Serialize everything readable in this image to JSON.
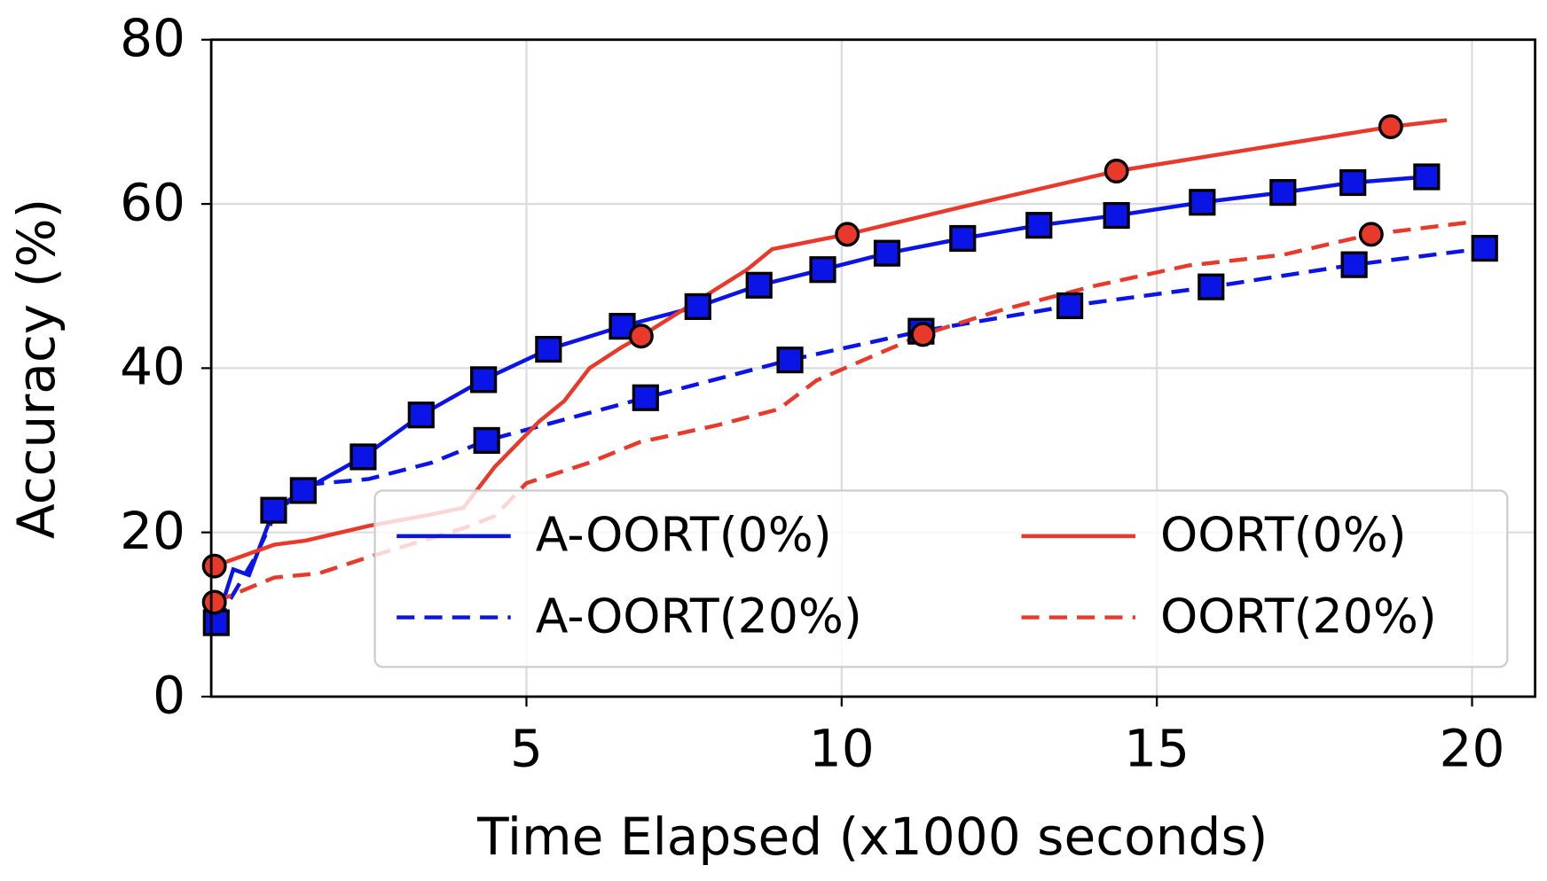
{
  "chart_data": {
    "type": "line",
    "x_label": "Time Elapsed (x1000 seconds)",
    "y_label": "Accuracy (%)",
    "xlim": [
      0,
      21
    ],
    "ylim": [
      0,
      80
    ],
    "xticks": [
      5,
      10,
      15,
      20
    ],
    "yticks": [
      0,
      20,
      40,
      60,
      80
    ],
    "grid": true,
    "legend": "lower right",
    "series": [
      {
        "name": "A-OORT(0%)",
        "color": "#0a14e6",
        "dash": "solid",
        "marker": "square",
        "x": [
          0.08,
          0.35,
          0.6,
          0.99,
          1.46,
          2.41,
          3.33,
          4.32,
          5.35,
          6.52,
          7.72,
          8.69,
          9.7,
          10.72,
          11.92,
          13.13,
          14.36,
          15.72,
          17.0,
          18.11,
          19.28
        ],
        "values": [
          9.0,
          15.5,
          14.8,
          22.7,
          25.1,
          29.2,
          34.3,
          38.6,
          42.3,
          45.1,
          47.5,
          50.1,
          52.0,
          54.0,
          55.8,
          57.4,
          58.6,
          60.2,
          61.4,
          62.6,
          63.3
        ],
        "marker_x": [
          0.08,
          0.99,
          1.46,
          2.41,
          3.33,
          4.32,
          5.35,
          6.52,
          7.72,
          8.69,
          9.7,
          10.72,
          11.92,
          13.13,
          14.36,
          15.72,
          17.0,
          18.11,
          19.28
        ],
        "marker_values": [
          9.0,
          22.7,
          25.1,
          29.2,
          34.3,
          38.6,
          42.3,
          45.1,
          47.5,
          50.1,
          52.0,
          54.0,
          55.8,
          57.4,
          58.6,
          60.2,
          61.4,
          62.6,
          63.3
        ]
      },
      {
        "name": "A-OORT(20%)",
        "color": "#0a14e6",
        "dash": "dashed",
        "marker": "square",
        "x": [
          0.08,
          0.7,
          1.0,
          1.5,
          2.5,
          3.5,
          4.37,
          6.89,
          9.18,
          11.26,
          13.62,
          15.86,
          18.13,
          20.2
        ],
        "values": [
          9.0,
          17.0,
          22.0,
          25.8,
          26.5,
          28.5,
          31.2,
          36.4,
          41.0,
          44.5,
          47.6,
          49.9,
          52.6,
          54.6
        ],
        "marker_x": [
          4.37,
          6.89,
          9.18,
          11.26,
          13.62,
          15.86,
          18.13,
          20.2
        ],
        "marker_values": [
          31.2,
          36.4,
          41.0,
          44.5,
          47.6,
          49.9,
          52.6,
          54.6
        ]
      },
      {
        "name": "OORT(0%)",
        "color": "#e8392b",
        "dash": "solid",
        "marker": "circle",
        "x": [
          0.05,
          1.0,
          1.5,
          2.5,
          3.5,
          4.0,
          4.5,
          5.2,
          5.6,
          6.0,
          6.5,
          6.82,
          8.5,
          8.9,
          10.09,
          12.0,
          14.36,
          18.71,
          19.6
        ],
        "values": [
          15.9,
          18.5,
          19.0,
          20.8,
          22.2,
          23.0,
          28.0,
          33.5,
          36.0,
          40.0,
          42.5,
          43.9,
          52.0,
          54.5,
          56.3,
          59.8,
          64.0,
          69.4,
          70.2
        ],
        "marker_x": [
          0.05,
          6.82,
          10.09,
          14.36,
          18.71
        ],
        "marker_values": [
          15.9,
          43.9,
          56.3,
          64.0,
          69.4
        ]
      },
      {
        "name": "OORT(20%)",
        "color": "#e8392b",
        "dash": "dashed",
        "marker": "circle",
        "x": [
          0.05,
          1.0,
          1.7,
          2.5,
          4.0,
          4.5,
          5.0,
          6.0,
          6.8,
          8.0,
          9.0,
          9.6,
          10.2,
          11.29,
          12.5,
          14.0,
          15.5,
          17.0,
          18.4,
          20.0
        ],
        "values": [
          11.5,
          14.5,
          15.0,
          17.0,
          20.5,
          22.0,
          26.0,
          28.5,
          31.0,
          33.0,
          35.0,
          38.5,
          40.5,
          44.1,
          47.0,
          50.0,
          52.5,
          53.8,
          56.3,
          57.8
        ],
        "marker_x": [
          0.05,
          11.29,
          18.4
        ],
        "marker_values": [
          11.5,
          44.1,
          56.3
        ]
      }
    ]
  }
}
